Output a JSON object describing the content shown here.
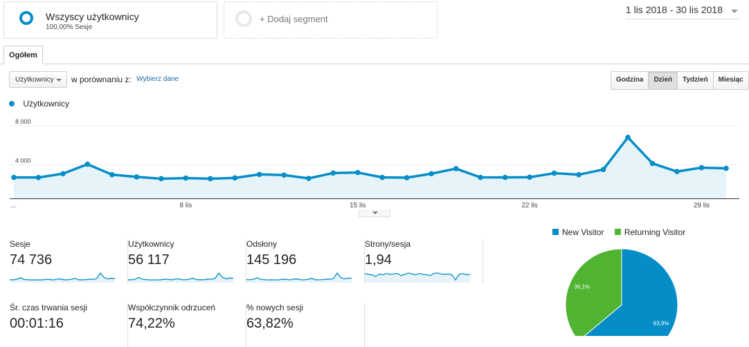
{
  "segments": {
    "active": {
      "title": "Wszyscy użytkownicy",
      "subtitle": "100,00% Sesje"
    },
    "add_label": "+ Dodaj segment"
  },
  "date_range": "1 lis 2018 - 30 lis 2018",
  "tabs": [
    "Ogółem"
  ],
  "controls": {
    "metric": "Użytkownicy",
    "compare_label": "w porównaniu z:",
    "choose_label": "Wybierz dane",
    "granularity": [
      "Godzina",
      "Dzień",
      "Tydzień",
      "Miesiąc"
    ],
    "granularity_active": "Dzień"
  },
  "chart_data": {
    "type": "area",
    "series": [
      {
        "name": "Użytkownicy",
        "color": "#058dc7",
        "values": [
          2150,
          2140,
          2530,
          3500,
          2430,
          2200,
          2020,
          2080,
          2020,
          2100,
          2460,
          2390,
          2050,
          2600,
          2650,
          2150,
          2120,
          2530,
          3050,
          2150,
          2150,
          2170,
          2580,
          2430,
          2960,
          6250,
          3580,
          2750,
          3150,
          3080
        ]
      }
    ],
    "x_tick_labels": [
      "...",
      "8 lis",
      "15 lis",
      "22 lis",
      "29 lis"
    ],
    "y_tick_labels": [
      "8 000",
      "4 000"
    ],
    "ylim": [
      0,
      8000
    ]
  },
  "metrics": [
    {
      "label": "Sesje",
      "value": "74 736",
      "spark": [
        2.9,
        2.8,
        3.2,
        4.3,
        3.0,
        2.9,
        2.7,
        2.8,
        2.7,
        2.8,
        3.2,
        3.1,
        2.7,
        3.3,
        3.4,
        2.8,
        2.8,
        3.2,
        3.8,
        2.8,
        2.8,
        2.9,
        3.3,
        3.1,
        3.7,
        7.6,
        4.4,
        3.5,
        3.9,
        3.8
      ]
    },
    {
      "label": "Użytkownicy",
      "value": "56 117",
      "spark": [
        2.15,
        2.14,
        2.53,
        3.5,
        2.43,
        2.2,
        2.02,
        2.08,
        2.02,
        2.1,
        2.46,
        2.39,
        2.05,
        2.6,
        2.65,
        2.15,
        2.12,
        2.53,
        3.05,
        2.15,
        2.15,
        2.17,
        2.58,
        2.43,
        2.96,
        6.25,
        3.58,
        2.75,
        3.15,
        3.08
      ]
    },
    {
      "label": "Odsłony",
      "value": "145 196",
      "spark": [
        5.6,
        5.4,
        6.1,
        7.9,
        5.8,
        5.5,
        5.2,
        5.4,
        5.2,
        5.4,
        6.0,
        5.9,
        5.2,
        6.3,
        6.4,
        5.4,
        5.3,
        6.0,
        7.1,
        5.4,
        5.4,
        5.5,
        6.2,
        6.0,
        6.9,
        13.6,
        8.0,
        6.6,
        7.4,
        7.3
      ]
    },
    {
      "label": "Strony/sesja",
      "value": "1,94",
      "spark": [
        1.95,
        1.93,
        1.92,
        1.88,
        1.94,
        1.92,
        1.95,
        1.93,
        1.94,
        1.95,
        1.9,
        1.93,
        1.96,
        1.94,
        1.92,
        1.95,
        1.93,
        1.92,
        1.9,
        1.95,
        1.96,
        1.94,
        1.93,
        1.94,
        1.92,
        1.8,
        1.93,
        1.95,
        1.92,
        1.93
      ]
    },
    {
      "label": "Śr. czas trwania sesji",
      "value": "00:01:16"
    },
    {
      "label": "Współczynnik odrzuceń",
      "value": "74,22%"
    },
    {
      "label": "% nowych sesji",
      "value": "63,82%"
    }
  ],
  "pie": {
    "legend": [
      {
        "label": "New Visitor",
        "color": "#058dc7"
      },
      {
        "label": "Returning Visitor",
        "color": "#50b432"
      }
    ],
    "slices": [
      {
        "label": "New Visitor",
        "value": 63.9,
        "text": "63,9%",
        "color": "#058dc7"
      },
      {
        "label": "Returning Visitor",
        "value": 36.1,
        "text": "36,1%",
        "color": "#50b432"
      }
    ]
  }
}
